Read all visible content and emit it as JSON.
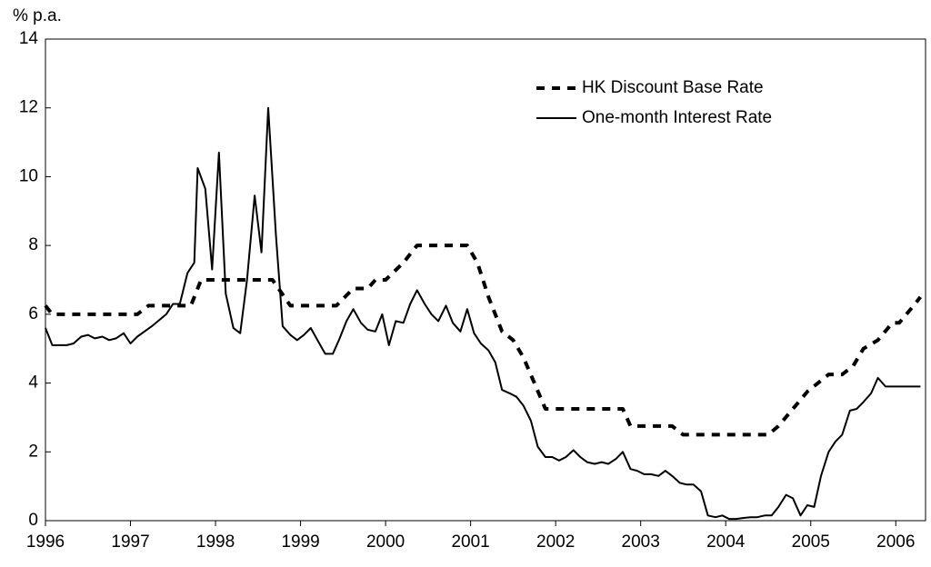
{
  "chart_data": {
    "type": "line",
    "y_label": "% p.a.",
    "xlim": [
      1996,
      2006.35
    ],
    "xticks": [
      1996,
      1997,
      1998,
      1999,
      2000,
      2001,
      2002,
      2003,
      2004,
      2005,
      2006
    ],
    "ylim": [
      0,
      14
    ],
    "yticks": [
      0,
      2,
      4,
      6,
      8,
      10,
      12,
      14
    ],
    "grid": false,
    "legend": "upper right",
    "series": [
      {
        "name": "HK Discount Base Rate",
        "color": "#000000",
        "dash": true,
        "x": [
          1996.0,
          1996.08,
          1997.08,
          1997.21,
          1997.71,
          1997.83,
          1998.67,
          1998.88,
          1999.42,
          1999.62,
          1999.79,
          1999.88,
          2000.0,
          2000.21,
          2000.37,
          2000.96,
          2001.08,
          2001.21,
          2001.37,
          2001.5,
          2001.62,
          2001.75,
          2001.88,
          2002.79,
          2002.88,
          2003.37,
          2003.5,
          2004.5,
          2004.62,
          2004.79,
          2004.96,
          2005.21,
          2005.37,
          2005.5,
          2005.62,
          2005.79,
          2005.96,
          2006.04,
          2006.21,
          2006.29
        ],
        "values": [
          6.25,
          6.0,
          6.0,
          6.25,
          6.25,
          7.0,
          7.0,
          6.25,
          6.25,
          6.75,
          6.75,
          7.0,
          7.0,
          7.5,
          8.0,
          8.0,
          7.5,
          6.5,
          5.5,
          5.25,
          4.75,
          4.0,
          3.25,
          3.25,
          2.75,
          2.75,
          2.5,
          2.5,
          2.75,
          3.25,
          3.75,
          4.25,
          4.25,
          4.5,
          5.0,
          5.25,
          5.75,
          5.75,
          6.25,
          6.5
        ]
      },
      {
        "name": "One-month Interest Rate",
        "color": "#000000",
        "dash": false,
        "x": [
          1996.0,
          1996.08,
          1996.25,
          1996.33,
          1996.42,
          1996.5,
          1996.58,
          1996.67,
          1996.75,
          1996.83,
          1996.92,
          1997.0,
          1997.08,
          1997.25,
          1997.42,
          1997.5,
          1997.58,
          1997.67,
          1997.75,
          1997.79,
          1997.88,
          1997.96,
          1998.04,
          1998.12,
          1998.21,
          1998.29,
          1998.37,
          1998.46,
          1998.54,
          1998.62,
          1998.71,
          1998.79,
          1998.88,
          1998.96,
          1999.04,
          1999.12,
          1999.21,
          1999.29,
          1999.38,
          1999.46,
          1999.54,
          1999.62,
          1999.71,
          1999.79,
          1999.88,
          1999.96,
          2000.04,
          2000.12,
          2000.21,
          2000.29,
          2000.37,
          2000.46,
          2000.54,
          2000.62,
          2000.71,
          2000.79,
          2000.88,
          2000.96,
          2001.04,
          2001.12,
          2001.21,
          2001.29,
          2001.37,
          2001.46,
          2001.54,
          2001.62,
          2001.71,
          2001.79,
          2001.88,
          2001.96,
          2002.04,
          2002.12,
          2002.21,
          2002.29,
          2002.37,
          2002.46,
          2002.54,
          2002.62,
          2002.71,
          2002.79,
          2002.88,
          2002.96,
          2003.04,
          2003.12,
          2003.21,
          2003.29,
          2003.37,
          2003.46,
          2003.54,
          2003.62,
          2003.71,
          2003.79,
          2003.88,
          2003.96,
          2004.04,
          2004.12,
          2004.21,
          2004.29,
          2004.37,
          2004.46,
          2004.54,
          2004.62,
          2004.71,
          2004.79,
          2004.88,
          2004.96,
          2005.04,
          2005.12,
          2005.21,
          2005.29,
          2005.37,
          2005.46,
          2005.54,
          2005.62,
          2005.71,
          2005.79,
          2005.88,
          2005.96,
          2006.04,
          2006.12,
          2006.21,
          2006.29
        ],
        "values": [
          5.6,
          5.1,
          5.1,
          5.15,
          5.35,
          5.4,
          5.3,
          5.35,
          5.25,
          5.3,
          5.45,
          5.15,
          5.35,
          5.65,
          6.0,
          6.3,
          6.3,
          7.2,
          7.5,
          10.25,
          9.65,
          7.3,
          10.7,
          6.6,
          5.6,
          5.45,
          7.0,
          9.45,
          7.8,
          12.0,
          8.3,
          5.65,
          5.4,
          5.25,
          5.4,
          5.6,
          5.2,
          4.85,
          4.85,
          5.3,
          5.8,
          6.15,
          5.75,
          5.55,
          5.5,
          6.0,
          5.1,
          5.8,
          5.75,
          6.3,
          6.7,
          6.3,
          6.0,
          5.8,
          6.25,
          5.75,
          5.5,
          6.15,
          5.45,
          5.15,
          4.95,
          4.6,
          3.8,
          3.7,
          3.6,
          3.35,
          2.9,
          2.15,
          1.85,
          1.85,
          1.75,
          1.85,
          2.05,
          1.85,
          1.7,
          1.65,
          1.7,
          1.65,
          1.8,
          2.0,
          1.5,
          1.45,
          1.35,
          1.35,
          1.3,
          1.45,
          1.3,
          1.1,
          1.05,
          1.05,
          0.85,
          0.15,
          0.1,
          0.15,
          0.05,
          0.05,
          0.08,
          0.1,
          0.1,
          0.15,
          0.15,
          0.4,
          0.75,
          0.65,
          0.15,
          0.45,
          0.4,
          1.3,
          2.0,
          2.3,
          2.5,
          3.2,
          3.25,
          3.45,
          3.7,
          4.15,
          3.9,
          3.9,
          3.9,
          3.9,
          3.9,
          3.9
        ]
      }
    ]
  }
}
